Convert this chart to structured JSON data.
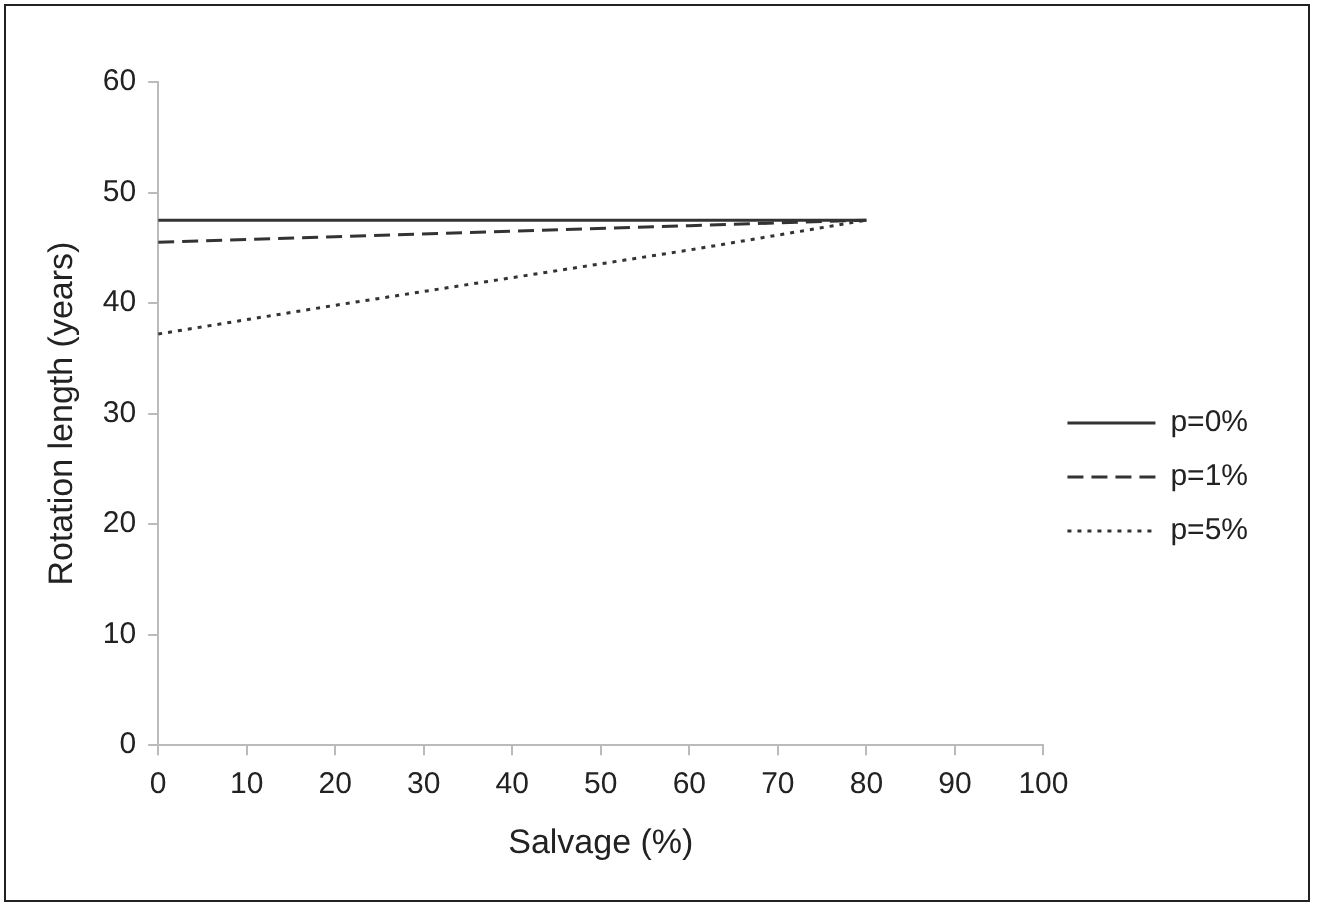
{
  "chart_data": {
    "type": "line",
    "xlabel": "Salvage (%)",
    "ylabel": "Rotation length (years)",
    "x": [
      0,
      20,
      40,
      60,
      80
    ],
    "series": [
      {
        "name": "p=0%",
        "color": "#333333",
        "line_style": "solid",
        "values": [
          47.5,
          47.5,
          47.5,
          47.5,
          47.5
        ]
      },
      {
        "name": "p=1%",
        "color": "#333333",
        "line_style": "dashed",
        "values": [
          45.5,
          46.0,
          46.5,
          47.0,
          47.5
        ]
      },
      {
        "name": "p=5%",
        "color": "#333333",
        "line_style": "dotted",
        "values": [
          37.2,
          39.8,
          42.3,
          44.8,
          47.5
        ]
      }
    ],
    "xlim": [
      0,
      100
    ],
    "xticks": [
      0,
      10,
      20,
      30,
      40,
      50,
      60,
      70,
      80,
      90,
      100
    ],
    "ylim": [
      0,
      60
    ],
    "yticks": [
      0,
      10,
      20,
      30,
      40,
      50,
      60
    ],
    "grid": false,
    "legend": "right",
    "marker": "none"
  }
}
